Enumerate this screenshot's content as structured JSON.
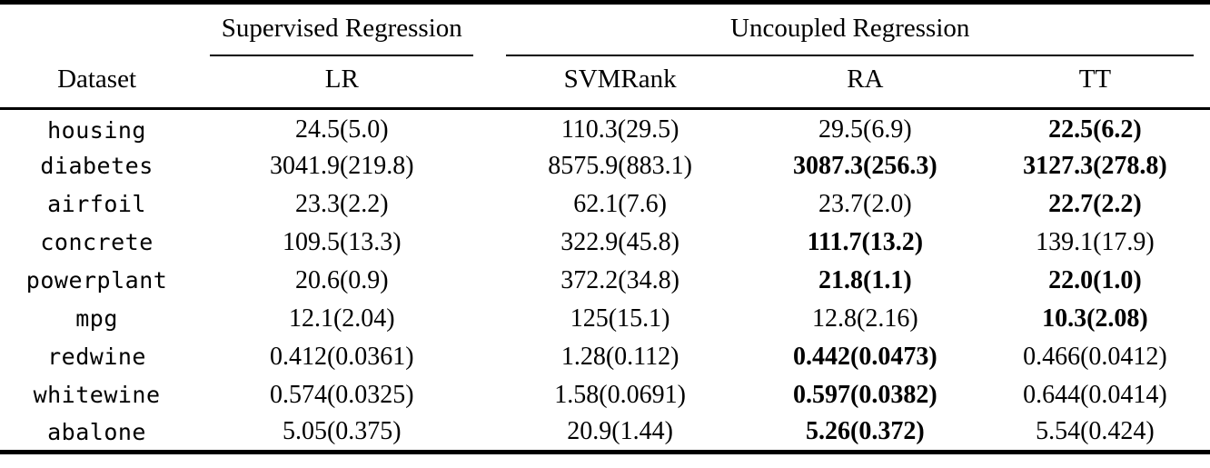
{
  "table": {
    "group_headers": [
      {
        "label": "Supervised Regression",
        "colspan": 1
      },
      {
        "label": "Uncoupled Regression",
        "colspan": 3
      }
    ],
    "columns": [
      "Dataset",
      "LR",
      "SVMRank",
      "RA",
      "TT"
    ],
    "rows": [
      {
        "dataset": "housing",
        "values": [
          {
            "text": "24.5(5.0)",
            "bold": false
          },
          {
            "text": "110.3(29.5)",
            "bold": false
          },
          {
            "text": "29.5(6.9)",
            "bold": false
          },
          {
            "text": "22.5(6.2)",
            "bold": true
          }
        ]
      },
      {
        "dataset": "diabetes",
        "values": [
          {
            "text": "3041.9(219.8)",
            "bold": false
          },
          {
            "text": "8575.9(883.1)",
            "bold": false
          },
          {
            "text": "3087.3(256.3)",
            "bold": true
          },
          {
            "text": "3127.3(278.8)",
            "bold": true
          }
        ]
      },
      {
        "dataset": "airfoil",
        "values": [
          {
            "text": "23.3(2.2)",
            "bold": false
          },
          {
            "text": "62.1(7.6)",
            "bold": false
          },
          {
            "text": "23.7(2.0)",
            "bold": false
          },
          {
            "text": "22.7(2.2)",
            "bold": true
          }
        ]
      },
      {
        "dataset": "concrete",
        "values": [
          {
            "text": "109.5(13.3)",
            "bold": false
          },
          {
            "text": "322.9(45.8)",
            "bold": false
          },
          {
            "text": "111.7(13.2)",
            "bold": true
          },
          {
            "text": "139.1(17.9)",
            "bold": false
          }
        ]
      },
      {
        "dataset": "powerplant",
        "values": [
          {
            "text": "20.6(0.9)",
            "bold": false
          },
          {
            "text": "372.2(34.8)",
            "bold": false
          },
          {
            "text": "21.8(1.1)",
            "bold": true
          },
          {
            "text": "22.0(1.0)",
            "bold": true
          }
        ]
      },
      {
        "dataset": "mpg",
        "values": [
          {
            "text": "12.1(2.04)",
            "bold": false
          },
          {
            "text": "125(15.1)",
            "bold": false
          },
          {
            "text": "12.8(2.16)",
            "bold": false
          },
          {
            "text": "10.3(2.08)",
            "bold": true
          }
        ]
      },
      {
        "dataset": "redwine",
        "values": [
          {
            "text": "0.412(0.0361)",
            "bold": false
          },
          {
            "text": "1.28(0.112)",
            "bold": false
          },
          {
            "text": "0.442(0.0473)",
            "bold": true
          },
          {
            "text": "0.466(0.0412)",
            "bold": false
          }
        ]
      },
      {
        "dataset": "whitewine",
        "values": [
          {
            "text": "0.574(0.0325)",
            "bold": false
          },
          {
            "text": "1.58(0.0691)",
            "bold": false
          },
          {
            "text": "0.597(0.0382)",
            "bold": true
          },
          {
            "text": "0.644(0.0414)",
            "bold": false
          }
        ]
      },
      {
        "dataset": "abalone",
        "values": [
          {
            "text": "5.05(0.375)",
            "bold": false
          },
          {
            "text": "20.9(1.44)",
            "bold": false
          },
          {
            "text": "5.26(0.372)",
            "bold": true
          },
          {
            "text": "5.54(0.424)",
            "bold": false
          }
        ]
      }
    ]
  },
  "chart_data": {
    "type": "table",
    "title": "",
    "group_headers": [
      "Supervised Regression (LR)",
      "Uncoupled Regression (SVMRank, RA, TT)"
    ],
    "columns": [
      "Dataset",
      "LR",
      "SVMRank",
      "RA",
      "TT"
    ],
    "rows": [
      [
        "housing",
        "24.5(5.0)",
        "110.3(29.5)",
        "29.5(6.9)",
        "22.5(6.2)"
      ],
      [
        "diabetes",
        "3041.9(219.8)",
        "8575.9(883.1)",
        "3087.3(256.3)",
        "3127.3(278.8)"
      ],
      [
        "airfoil",
        "23.3(2.2)",
        "62.1(7.6)",
        "23.7(2.0)",
        "22.7(2.2)"
      ],
      [
        "concrete",
        "109.5(13.3)",
        "322.9(45.8)",
        "111.7(13.2)",
        "139.1(17.9)"
      ],
      [
        "powerplant",
        "20.6(0.9)",
        "372.2(34.8)",
        "21.8(1.1)",
        "22.0(1.0)"
      ],
      [
        "mpg",
        "12.1(2.04)",
        "125(15.1)",
        "12.8(2.16)",
        "10.3(2.08)"
      ],
      [
        "redwine",
        "0.412(0.0361)",
        "1.28(0.112)",
        "0.442(0.0473)",
        "0.466(0.0412)"
      ],
      [
        "whitewine",
        "0.574(0.0325)",
        "1.58(0.0691)",
        "0.597(0.0382)",
        "0.644(0.0414)"
      ],
      [
        "abalone",
        "5.05(0.375)",
        "20.9(1.44)",
        "5.26(0.372)",
        "5.54(0.424)"
      ]
    ],
    "bold_cells": [
      [
        "housing",
        "TT"
      ],
      [
        "diabetes",
        "RA"
      ],
      [
        "diabetes",
        "TT"
      ],
      [
        "airfoil",
        "TT"
      ],
      [
        "concrete",
        "RA"
      ],
      [
        "powerplant",
        "RA"
      ],
      [
        "powerplant",
        "TT"
      ],
      [
        "mpg",
        "TT"
      ],
      [
        "redwine",
        "RA"
      ],
      [
        "whitewine",
        "RA"
      ],
      [
        "abalone",
        "RA"
      ]
    ]
  }
}
